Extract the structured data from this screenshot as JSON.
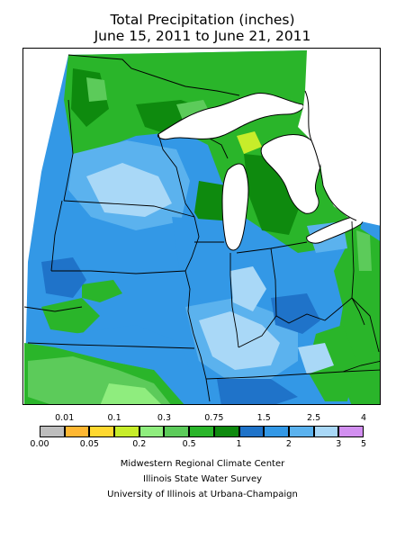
{
  "title": {
    "line1": "Total Precipitation (inches)",
    "line2": "June 15, 2011 to June 21, 2011"
  },
  "legend": {
    "colors": [
      "#bdbdbd",
      "#ffb732",
      "#ffd830",
      "#c7ed2a",
      "#8fed7e",
      "#5ccb5a",
      "#2ab52a",
      "#0e8a0e",
      "#1f73c9",
      "#3398e6",
      "#5bb2ee",
      "#a9d8f7",
      "#d28ff0"
    ],
    "top_labels": [
      "0.01",
      "0.1",
      "0.3",
      "0.75",
      "1.5",
      "2.5",
      "4"
    ],
    "bottom_labels": [
      "0.00",
      "0.05",
      "0.2",
      "0.5",
      "1",
      "2",
      "3",
      "5"
    ]
  },
  "credits": {
    "line1": "Midwestern Regional Climate Center",
    "line2": "Illinois State Water Survey",
    "line3": "University of Illinois at Urbana-Champaign"
  },
  "map": {
    "palette": {
      "bg_green": "#2ab52a",
      "dark_green": "#0e8a0e",
      "light_green": "#5ccb5a",
      "pale_green": "#8fed7e",
      "yellow_green": "#c7ed2a",
      "blue_dark": "#1f73c9",
      "blue_mid": "#3398e6",
      "blue_light": "#5bb2ee",
      "blue_pale": "#a9d8f7",
      "water": "#ffffff",
      "line": "#000000"
    },
    "regions": [
      "Minnesota",
      "Wisconsin",
      "Michigan",
      "Iowa",
      "Illinois",
      "Indiana",
      "Ohio",
      "Missouri",
      "Kentucky"
    ]
  }
}
